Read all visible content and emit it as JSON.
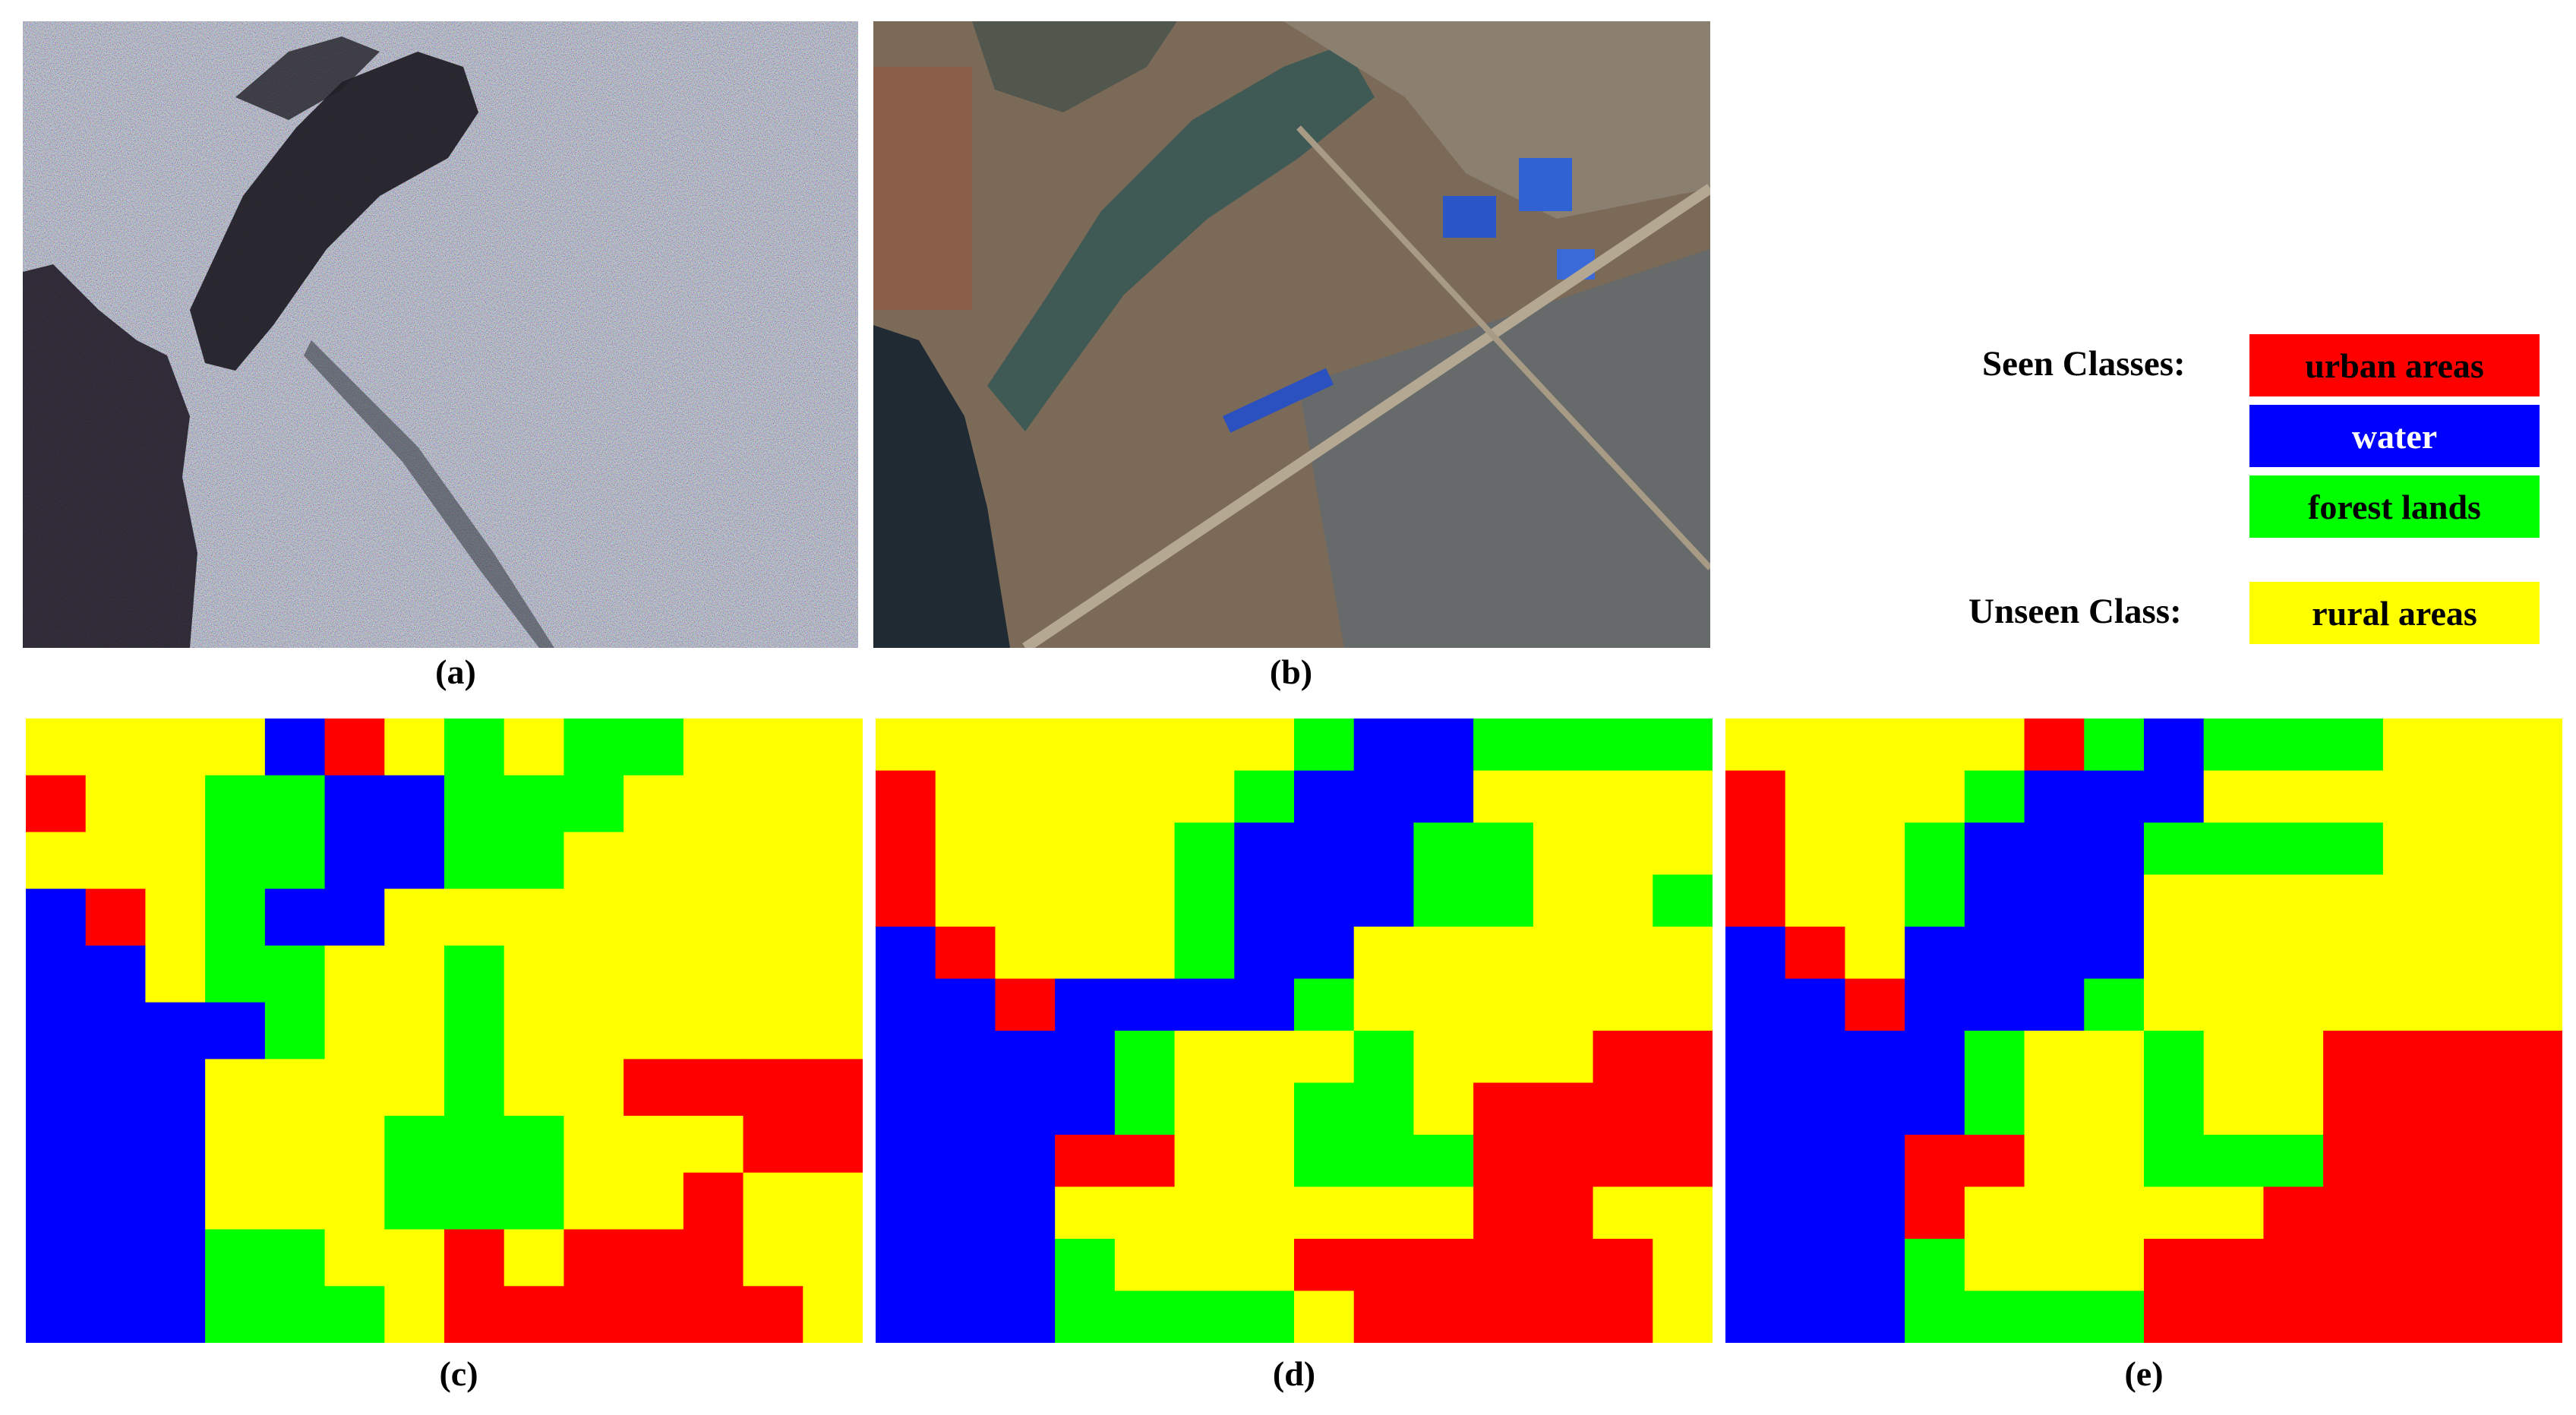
{
  "captions": {
    "a": "(a)",
    "b": "(b)",
    "c": "(c)",
    "d": "(d)",
    "e": "(e)"
  },
  "legend": {
    "seen_heading": "Seen Classes:",
    "unseen_heading": "Unseen Class:",
    "items": [
      {
        "label": "urban areas",
        "color": "#ff0000",
        "text_color": "#000000"
      },
      {
        "label": "water",
        "color": "#0000ff",
        "text_color": "#ffffff"
      },
      {
        "label": "forest lands",
        "color": "#00ff00",
        "text_color": "#000000"
      },
      {
        "label": "rural areas",
        "color": "#ffff00",
        "text_color": "#000000"
      }
    ]
  },
  "class_colors": {
    "R": "#ff0000",
    "B": "#0000ff",
    "G": "#00ff00",
    "Y": "#ffff00"
  },
  "maps": {
    "c": [
      "YYYYBRYGYGGYYY",
      "RYYGGBBGGGYYYY",
      "YYYGGBBGGYYYYY",
      "BRYGBBYYYYYYYY",
      "BBYGGYYGYYYYYY",
      "BBBBGYYGYYYYYY",
      "BBBYYYYGYYRRRR",
      "BBBYYYGGGYYYRR",
      "BBBYYYGGGYYRYY",
      "BBBGGYYRYRRRYY",
      "BBBGGGYRRRRRRY"
    ],
    "d": [
      "YYYYYYYGBBGGGG",
      "RYYYYYGBBBYYYY",
      "RYYYYGBBBGGYYY",
      "RYYYYGBBBGGYYG",
      "BRYYYGBBYYYYYY",
      "BBRBBBBGYYYYYY",
      "BBBBGYYYGYYYRR",
      "BBBBGYYGGYRRRR",
      "BBBRRYYGGGRRRR",
      "BBBYYYYYYYRRYY",
      "BBBGYYYRRRRRRY",
      "BBBGGGGYRRRRRY"
    ],
    "e": [
      "YYYYYRGBGGGYYY",
      "RYYYGBBBYYYYYY",
      "RYYGBBBGGGGYYY",
      "RYYGBBBYYYYYYY",
      "BRYBBBBYYYYYYY",
      "BBRBBBGYYYYYYY",
      "BBBBGYYGYYRRRR",
      "BBBBGYYGYYRRRR",
      "BBBRRYYGGGRRRR",
      "BBBRYYYYYRRRRR",
      "BBBGYYYRRRRRRR",
      "BBBGGGGRRRRRRR"
    ]
  }
}
